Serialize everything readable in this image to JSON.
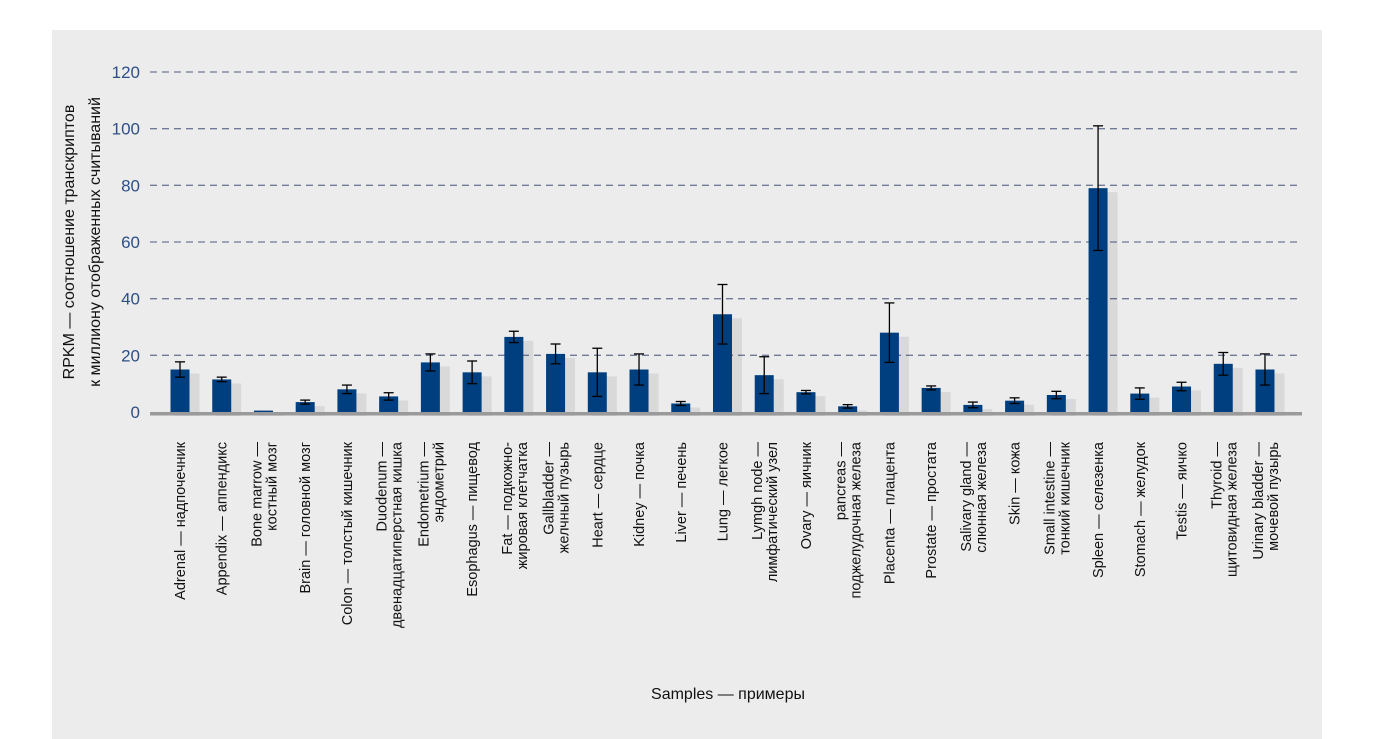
{
  "chart_data": {
    "type": "bar",
    "title": "",
    "xlabel": "Samples — примеры",
    "ylabel": [
      "RPKM — соотношение транскриптов",
      "к миллиону отображенных считываний"
    ],
    "ylim": [
      0,
      120
    ],
    "yticks": [
      0,
      20,
      40,
      60,
      80,
      100,
      120
    ],
    "grid": true,
    "bar_color": "#003f7f",
    "categories": [
      [
        "Adrenal — надпочечник"
      ],
      [
        "Appendix — аппендикс"
      ],
      [
        "Bone marrow —",
        "костный мозг"
      ],
      [
        "Brain — головной мозг"
      ],
      [
        "Colon — толстый кишечник"
      ],
      [
        "Duodenum —",
        "двенадцатиперстная кишка"
      ],
      [
        "Endometrium —",
        "эндометрий"
      ],
      [
        "Esophagus — пищевод"
      ],
      [
        "Fat — подкожно-",
        "жировая клетчатка"
      ],
      [
        "Gallbladder —",
        "желчный пузырь"
      ],
      [
        "Heart — сердце"
      ],
      [
        "Kidney — почка"
      ],
      [
        "Liver — печень"
      ],
      [
        "Lung — легкое"
      ],
      [
        "Lymgh node —",
        "лимфатический узел"
      ],
      [
        "Ovary — яичник"
      ],
      [
        "pancreas —",
        "поджелудочная железа"
      ],
      [
        "Placenta — плацента"
      ],
      [
        "Prostate — простата"
      ],
      [
        "Salivary gland —",
        "слюнная железа"
      ],
      [
        "Skin — кожа"
      ],
      [
        "Small intestine —",
        "тонкий кишечник"
      ],
      [
        "Spleen — селезенка"
      ],
      [
        "Stomach — желудок"
      ],
      [
        "Testis — яичко"
      ],
      [
        "Thyroid —",
        "щитовидная железа"
      ],
      [
        "Urinary bladder —",
        "мочевой пузырь"
      ]
    ],
    "values": [
      15,
      11.5,
      0.5,
      3.5,
      8,
      5.5,
      17.5,
      14,
      26.5,
      20.5,
      14,
      15,
      3,
      34.5,
      13,
      7,
      2,
      28,
      8.5,
      2.5,
      4,
      6,
      79,
      6.5,
      9,
      17,
      15
    ],
    "errors": [
      2.7,
      0.8,
      0,
      0.7,
      1.5,
      1.3,
      3,
      4,
      2,
      3.5,
      8.5,
      5.5,
      0.7,
      10.5,
      6.5,
      0.6,
      0.6,
      10.5,
      0.7,
      1,
      1,
      1.3,
      22,
      2,
      1.5,
      4,
      5.5
    ]
  }
}
